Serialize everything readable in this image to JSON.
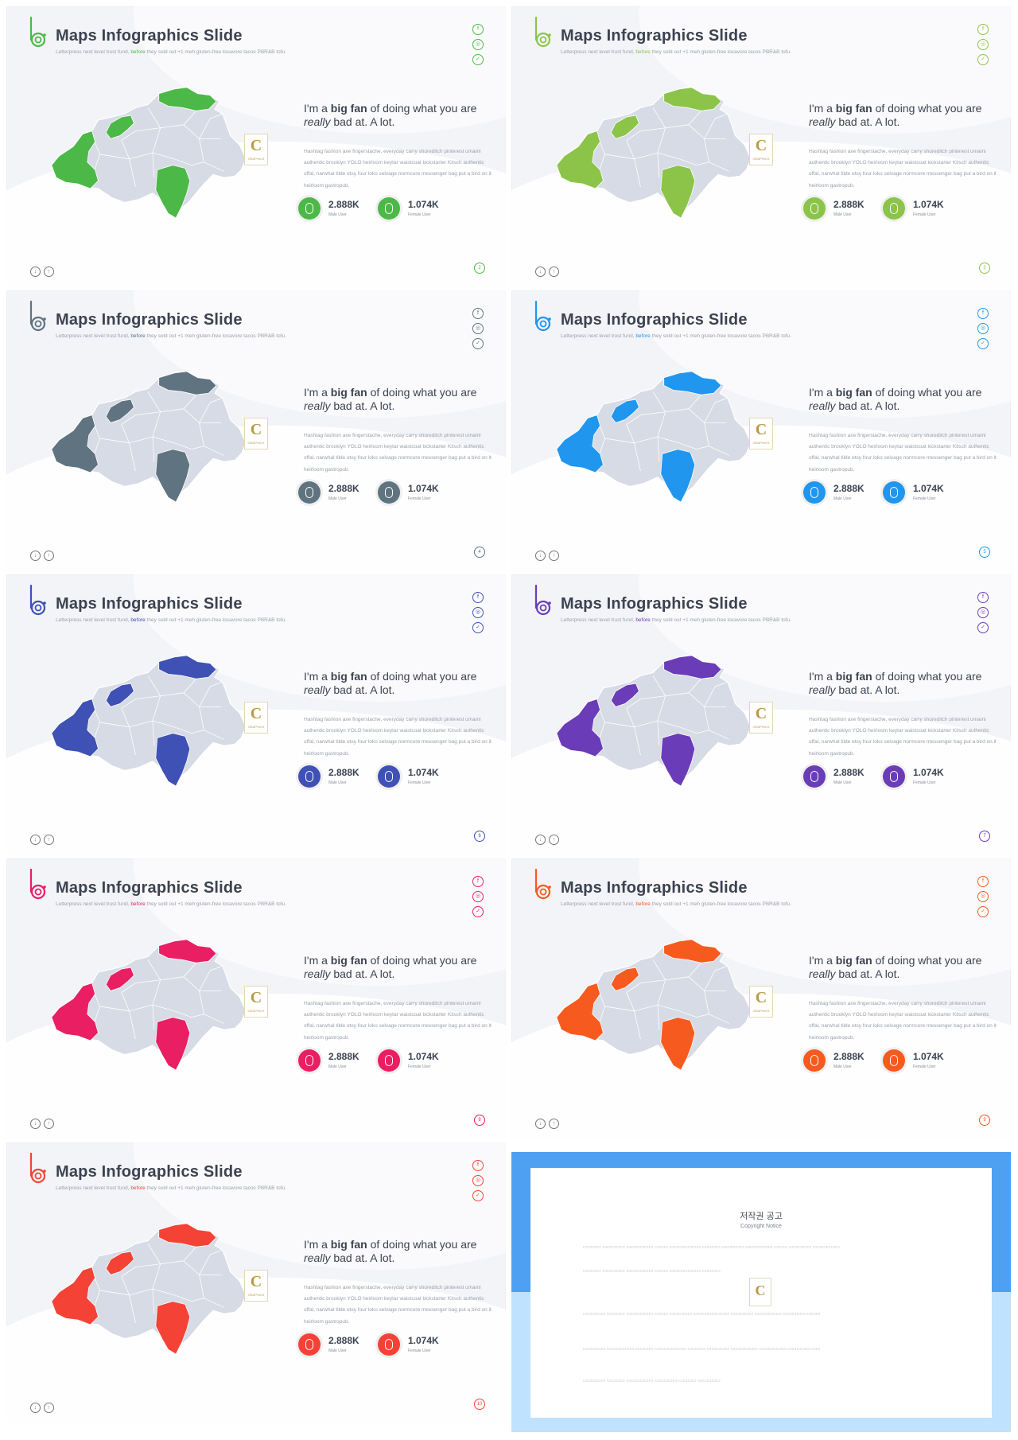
{
  "slides": [
    {
      "accent": "#4cb847",
      "page": "2"
    },
    {
      "accent": "#8cc449",
      "page": "3"
    },
    {
      "accent": "#5f7380",
      "page": "4"
    },
    {
      "accent": "#2096ef",
      "page": "5"
    },
    {
      "accent": "#3f51b5",
      "page": "6"
    },
    {
      "accent": "#6a3cb8",
      "page": "7"
    },
    {
      "accent": "#e91e63",
      "page": "8"
    },
    {
      "accent": "#f75a1e",
      "page": "9"
    },
    {
      "accent": "#f44336",
      "page": "10"
    }
  ],
  "common": {
    "title": "Maps Infographics Slide",
    "subtitle_a": "Letterpress next level trust fund, ",
    "subtitle_hl": "before",
    "subtitle_b": " they sold out +1 meh gluten-free locavore tacos PBR&B tofu.",
    "quote_a": "I'm a ",
    "quote_bold": "big fan",
    "quote_b": " of doing what you are",
    "quote_em": "really",
    "quote_c": " bad at. A lot.",
    "body": "Hashtag fashion axe fingerstache, everyday carry shoreditch pinterest umami authentic brooklyn YOLO heirloom keytar waistcoat kickstarter Kitsch authentic offal, narwhal tilde etsy four loko selvage normcore messenger bag put a bird on it heirloom gastropub.",
    "stat1_value": "2.888K",
    "stat1_label": "Male User",
    "stat2_value": "1.074K",
    "stat2_label": "Female User",
    "badge_letter": "C",
    "badge_text": "GRAPHICS"
  },
  "copyright": {
    "title": "저작권 공고",
    "subtitle": "Copyright Notice",
    "badge_letter": "C"
  }
}
